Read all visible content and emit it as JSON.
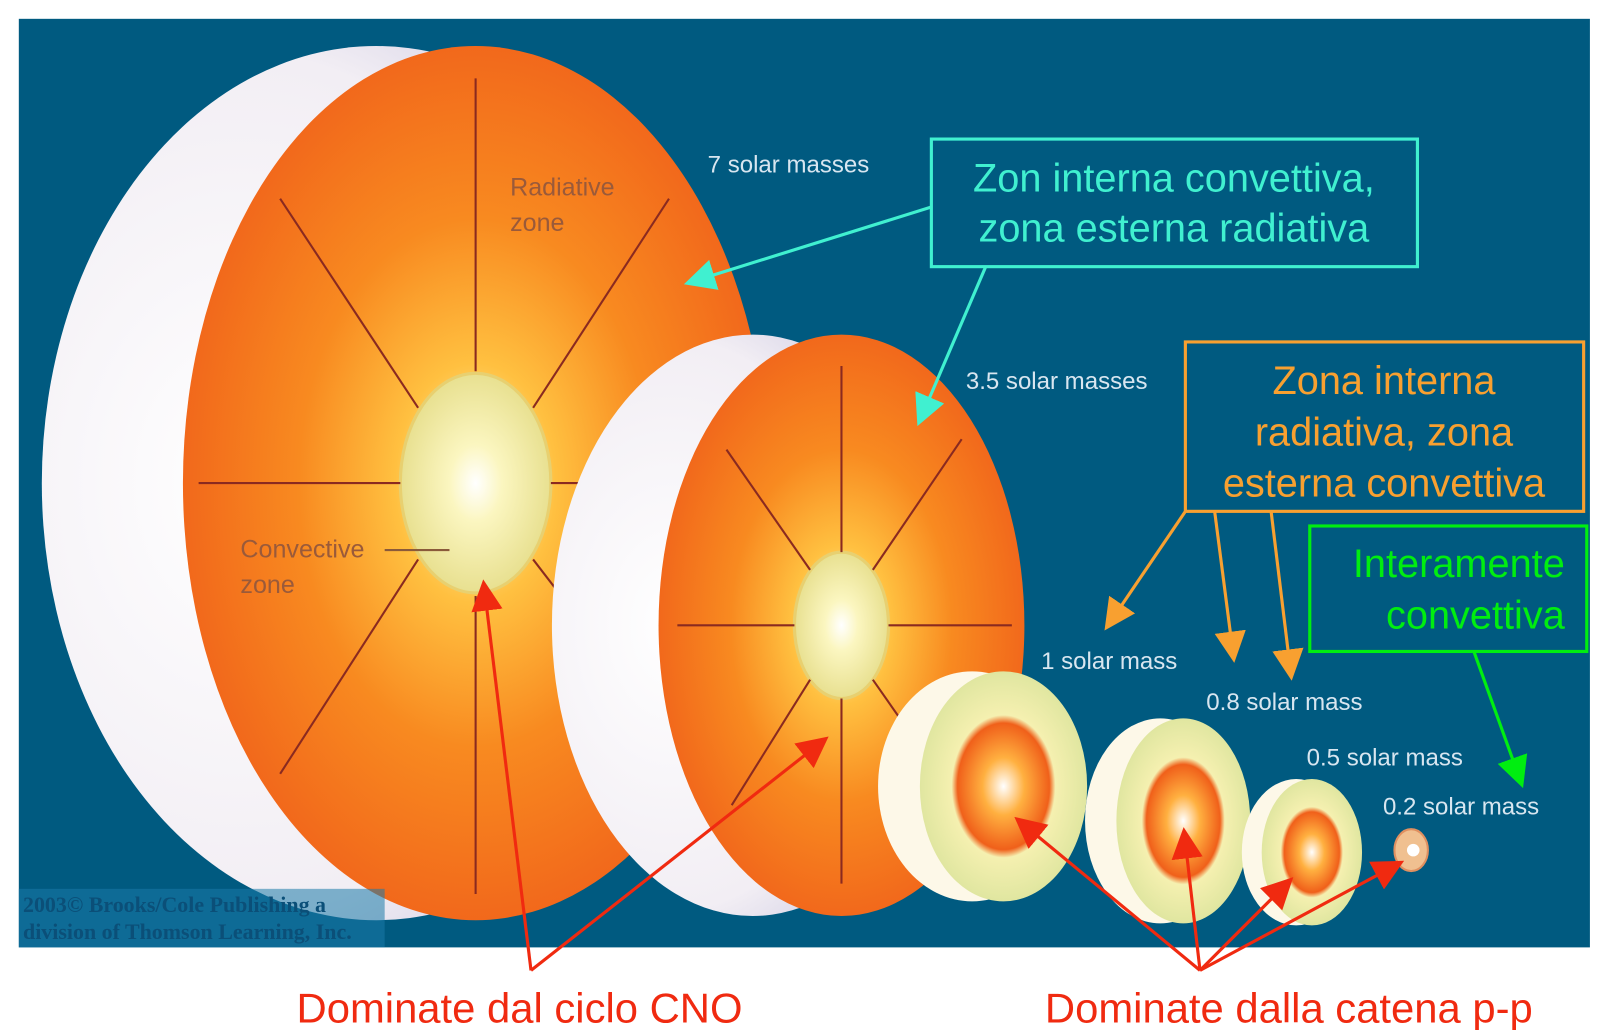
{
  "colors": {
    "background": "#005a80",
    "page": "#ffffff",
    "cyan": "#40f0d0",
    "orange": "#f8a030",
    "green": "#00ee10",
    "red": "#f02a10",
    "star_orange": "#f4661a"
  },
  "star_labels": {
    "m7": "7 solar masses",
    "m35": "3.5 solar masses",
    "m1": "1 solar mass",
    "m08": "0.8 solar mass",
    "m05": "0.5 solar mass",
    "m02": "0.2 solar mass"
  },
  "zone_labels": {
    "radiative_1": "Radiative",
    "radiative_2": "zone",
    "convective_1": "Convective",
    "convective_2": "zone"
  },
  "callouts": {
    "cyan": {
      "line1": "Zon interna convettiva,",
      "line2": "zona esterna radiativa"
    },
    "orange": {
      "line1": "Zona interna",
      "line2": "radiativa, zona",
      "line3": "esterna convettiva"
    },
    "green": {
      "line1": "Interamente",
      "line2": "convettiva"
    }
  },
  "bottom": {
    "cno": "Dominate dal ciclo CNO",
    "pp": "Dominate dalla catena p-p"
  },
  "watermark": {
    "line1": "2003© Brooks/Cole Publishing a",
    "line2": "division of Thomson Learning, Inc."
  }
}
